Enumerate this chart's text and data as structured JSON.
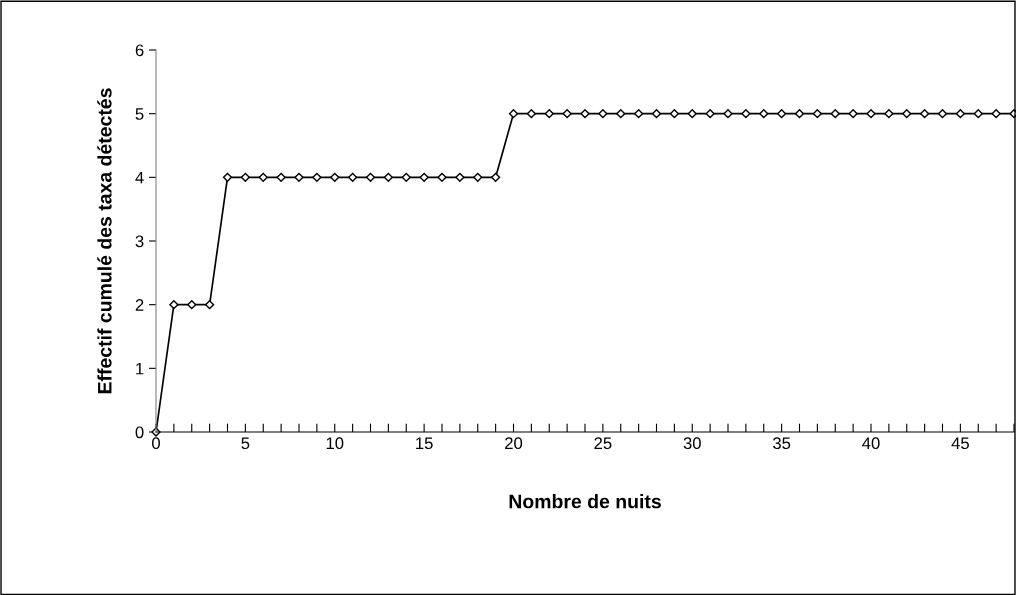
{
  "chart_data": {
    "type": "line",
    "xlabel": "Nombre de nuits",
    "ylabel": "Effectif cumulé des taxa détectés",
    "x": [
      0,
      1,
      2,
      3,
      4,
      5,
      6,
      7,
      8,
      9,
      10,
      11,
      12,
      13,
      14,
      15,
      16,
      17,
      18,
      19,
      20,
      21,
      22,
      23,
      24,
      25,
      26,
      27,
      28,
      29,
      30,
      31,
      32,
      33,
      34,
      35,
      36,
      37,
      38,
      39,
      40,
      41,
      42,
      43,
      44,
      45,
      46,
      47,
      48
    ],
    "series": [
      {
        "color": "#000000",
        "values": [
          0,
          2,
          2,
          2,
          4,
          4,
          4,
          4,
          4,
          4,
          4,
          4,
          4,
          4,
          4,
          4,
          4,
          4,
          4,
          4,
          5,
          5,
          5,
          5,
          5,
          5,
          5,
          5,
          5,
          5,
          5,
          5,
          5,
          5,
          5,
          5,
          5,
          5,
          5,
          5,
          5,
          5,
          5,
          5,
          5,
          5,
          5,
          5,
          5
        ]
      }
    ],
    "xlim": [
      0,
      48
    ],
    "xticks": [
      0,
      {
        "value": 1,
        "label": null
      },
      {
        "value": 2,
        "label": null
      },
      {
        "value": 3,
        "label": null
      },
      {
        "value": 4,
        "label": null
      },
      5,
      {
        "value": 6,
        "label": null
      },
      {
        "value": 7,
        "label": null
      },
      {
        "value": 8,
        "label": null
      },
      {
        "value": 9,
        "label": null
      },
      10,
      {
        "value": 11,
        "label": null
      },
      {
        "value": 12,
        "label": null
      },
      {
        "value": 13,
        "label": null
      },
      {
        "value": 14,
        "label": null
      },
      15,
      {
        "value": 16,
        "label": null
      },
      {
        "value": 17,
        "label": null
      },
      {
        "value": 18,
        "label": null
      },
      {
        "value": 19,
        "label": null
      },
      20,
      {
        "value": 21,
        "label": null
      },
      {
        "value": 22,
        "label": null
      },
      {
        "value": 23,
        "label": null
      },
      {
        "value": 24,
        "label": null
      },
      25,
      {
        "value": 26,
        "label": null
      },
      {
        "value": 27,
        "label": null
      },
      {
        "value": 28,
        "label": null
      },
      {
        "value": 29,
        "label": null
      },
      30,
      {
        "value": 31,
        "label": null
      },
      {
        "value": 32,
        "label": null
      },
      {
        "value": 33,
        "label": null
      },
      {
        "value": 34,
        "label": null
      },
      35,
      {
        "value": 36,
        "label": null
      },
      {
        "value": 37,
        "label": null
      },
      {
        "value": 38,
        "label": null
      },
      {
        "value": 39,
        "label": null
      },
      40,
      {
        "value": 41,
        "label": null
      },
      {
        "value": 42,
        "label": null
      },
      {
        "value": 43,
        "label": null
      },
      {
        "value": 44,
        "label": null
      },
      45,
      {
        "value": 46,
        "label": null
      },
      {
        "value": 47,
        "label": null
      },
      {
        "value": 48,
        "label": null
      }
    ],
    "ylim": [
      0,
      6
    ],
    "yticks": [
      0,
      1,
      2,
      3,
      4,
      5,
      6
    ],
    "grid": false,
    "legend": false,
    "marker": "diamond",
    "line_style": "solid"
  }
}
